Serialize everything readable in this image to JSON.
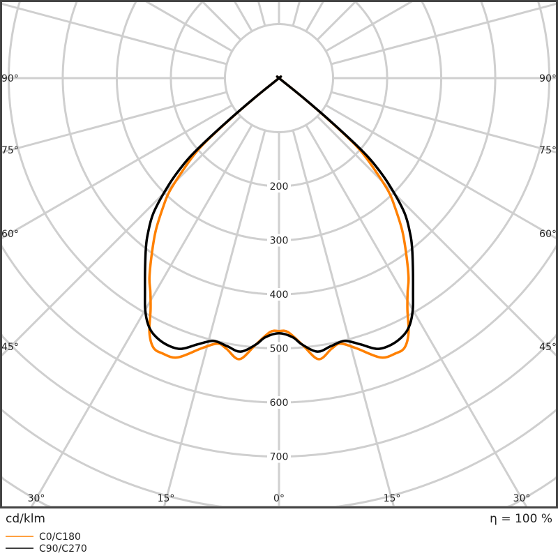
{
  "chart_data": {
    "type": "polar-line",
    "unit_label": "cd/klm",
    "efficiency_label": "η = 100 %",
    "radial_ticks": [
      "200",
      "300",
      "400",
      "500",
      "600",
      "700"
    ],
    "radial_tick_values": [
      200,
      300,
      400,
      500,
      600,
      700
    ],
    "radial_grid_step": 100,
    "angle_grid_step_deg": 15,
    "angle_labels_left": [
      "90°",
      "75°",
      "60°",
      "45°"
    ],
    "angle_labels_bottom": [
      "30°",
      "15°",
      "0°",
      "15°",
      "30°"
    ],
    "angle_labels_right": [
      "90°",
      "75°",
      "60°",
      "45°"
    ],
    "grid": true,
    "legend_position": "bottom-left",
    "symmetric": true,
    "series": [
      {
        "name": "C0/C180",
        "color": "#ff8000",
        "angles_deg": [
          0,
          2,
          5,
          8,
          11,
          13,
          16,
          20,
          23,
          25,
          27,
          29,
          31,
          33,
          36,
          39,
          42,
          44,
          46,
          48,
          49,
          50,
          51,
          52,
          60,
          90
        ],
        "values": [
          468,
          470,
          495,
          525,
          510,
          504,
          520,
          550,
          553,
          550,
          528,
          490,
          462,
          440,
          400,
          362,
          320,
          292,
          250,
          210,
          180,
          120,
          55,
          0,
          0,
          0
        ]
      },
      {
        "name": "C90/C270",
        "color": "#000000",
        "angles_deg": [
          0,
          3,
          5,
          8,
          11,
          14,
          17,
          20,
          23,
          26,
          28,
          30,
          32,
          35,
          38,
          40,
          43,
          46,
          48,
          49,
          50,
          51,
          52,
          60,
          90
        ],
        "values": [
          472,
          480,
          495,
          511,
          505,
          501,
          515,
          533,
          535,
          528,
          516,
          495,
          468,
          432,
          400,
          378,
          340,
          282,
          235,
          196,
          130,
          60,
          0,
          0,
          0
        ]
      }
    ]
  }
}
